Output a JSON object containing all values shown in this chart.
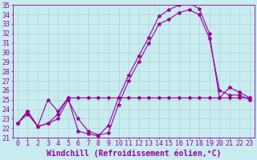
{
  "xlabel": "Windchill (Refroidissement éolien,°C)",
  "xlim": [
    -0.5,
    23.5
  ],
  "ylim": [
    21,
    35
  ],
  "xticks": [
    0,
    1,
    2,
    3,
    4,
    5,
    6,
    7,
    8,
    9,
    10,
    11,
    12,
    13,
    14,
    15,
    16,
    17,
    18,
    19,
    20,
    21,
    22,
    23
  ],
  "yticks": [
    21,
    22,
    23,
    24,
    25,
    26,
    27,
    28,
    29,
    30,
    31,
    32,
    33,
    34,
    35
  ],
  "bg_color": "#c8ecf0",
  "line_color": "#990099",
  "grid_color": "#aacccc",
  "line1_y": [
    22.5,
    23.8,
    22.2,
    25.0,
    23.8,
    25.2,
    21.7,
    21.4,
    21.2,
    22.3,
    25.2,
    27.6,
    29.6,
    31.6,
    33.8,
    34.5,
    35.0,
    35.2,
    34.6,
    32.0,
    25.2,
    26.3,
    25.8,
    25.2
  ],
  "line2_y": [
    22.5,
    23.8,
    22.2,
    22.5,
    23.0,
    25.0,
    23.0,
    21.7,
    21.3,
    21.5,
    24.5,
    27.0,
    29.0,
    31.0,
    33.0,
    33.5,
    34.2,
    34.5,
    34.0,
    31.5,
    26.0,
    25.5,
    25.5,
    25.0
  ],
  "line3_y": [
    22.5,
    23.5,
    22.2,
    22.5,
    23.5,
    25.2,
    25.2,
    25.2,
    25.2,
    25.2,
    25.2,
    25.2,
    25.2,
    25.2,
    25.2,
    25.2,
    25.2,
    25.2,
    25.2,
    25.2,
    25.2,
    25.2,
    25.2,
    25.2
  ],
  "marker": "*",
  "markersize": 3,
  "linewidth": 0.8,
  "font_size": 6
}
